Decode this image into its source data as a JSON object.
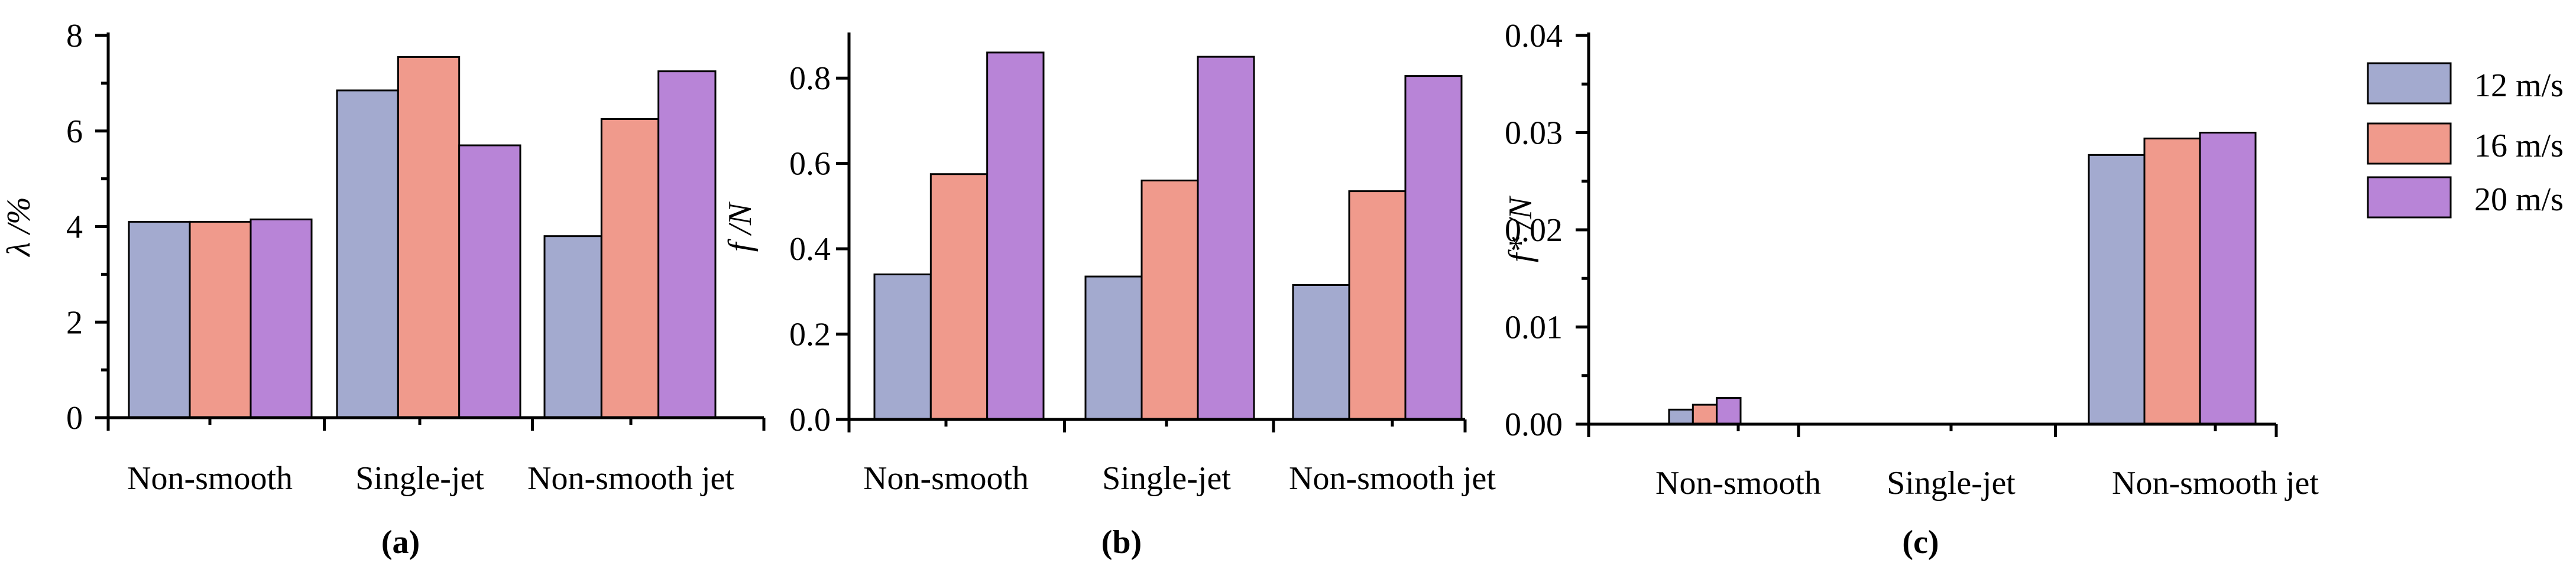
{
  "colors": {
    "s12": "#a3aacf",
    "s16": "#f09a8c",
    "s20": "#b884d7"
  },
  "legend": {
    "items": [
      "12 m/s",
      "16 m/s",
      "20 m/s"
    ]
  },
  "chart_data": [
    {
      "type": "bar",
      "panel_label": "(a)",
      "categories": [
        "Non-smooth",
        "Single-jet",
        "Non-smooth jet"
      ],
      "series": [
        {
          "name": "12 m/s",
          "values": [
            4.1,
            6.85,
            3.8
          ]
        },
        {
          "name": "16 m/s",
          "values": [
            4.1,
            7.55,
            6.25
          ]
        },
        {
          "name": "20 m/s",
          "values": [
            4.15,
            5.7,
            7.25
          ]
        }
      ],
      "ylabel": "λ /%",
      "ylim": [
        0,
        8
      ],
      "yticks": [
        "0",
        "2",
        "4",
        "6",
        "8"
      ],
      "yminor": true,
      "ytick_values": [
        0,
        2,
        4,
        6,
        8
      ]
    },
    {
      "type": "bar",
      "panel_label": "(b)",
      "categories": [
        "Non-smooth",
        "Single-jet",
        "Non-smooth jet"
      ],
      "series": [
        {
          "name": "12 m/s",
          "values": [
            0.34,
            0.335,
            0.315
          ]
        },
        {
          "name": "16 m/s",
          "values": [
            0.575,
            0.56,
            0.535
          ]
        },
        {
          "name": "20 m/s",
          "values": [
            0.86,
            0.85,
            0.805
          ]
        }
      ],
      "ylabel": "f /N",
      "ylim": [
        0,
        0.9
      ],
      "yticks": [
        "0.0",
        "0.2",
        "0.4",
        "0.6",
        "0.8"
      ],
      "yminor": false,
      "ytick_values": [
        0,
        0.2,
        0.4,
        0.6,
        0.8
      ]
    },
    {
      "type": "bar",
      "panel_label": "(c)",
      "categories": [
        "Non-smooth",
        "Single-jet",
        "Non-smooth jet"
      ],
      "series": [
        {
          "name": "12 m/s",
          "values": [
            0.0015,
            0.0,
            0.0277
          ]
        },
        {
          "name": "16 m/s",
          "values": [
            0.002,
            0.0,
            0.0294
          ]
        },
        {
          "name": "20 m/s",
          "values": [
            0.0027,
            0.0,
            0.03
          ]
        }
      ],
      "ylabel": "f* /N",
      "ylim": [
        0,
        0.04
      ],
      "yticks": [
        "0.00",
        "0.01",
        "0.02",
        "0.03",
        "0.04"
      ],
      "yminor": true,
      "ytick_values": [
        0,
        0.01,
        0.02,
        0.03,
        0.04
      ]
    }
  ]
}
